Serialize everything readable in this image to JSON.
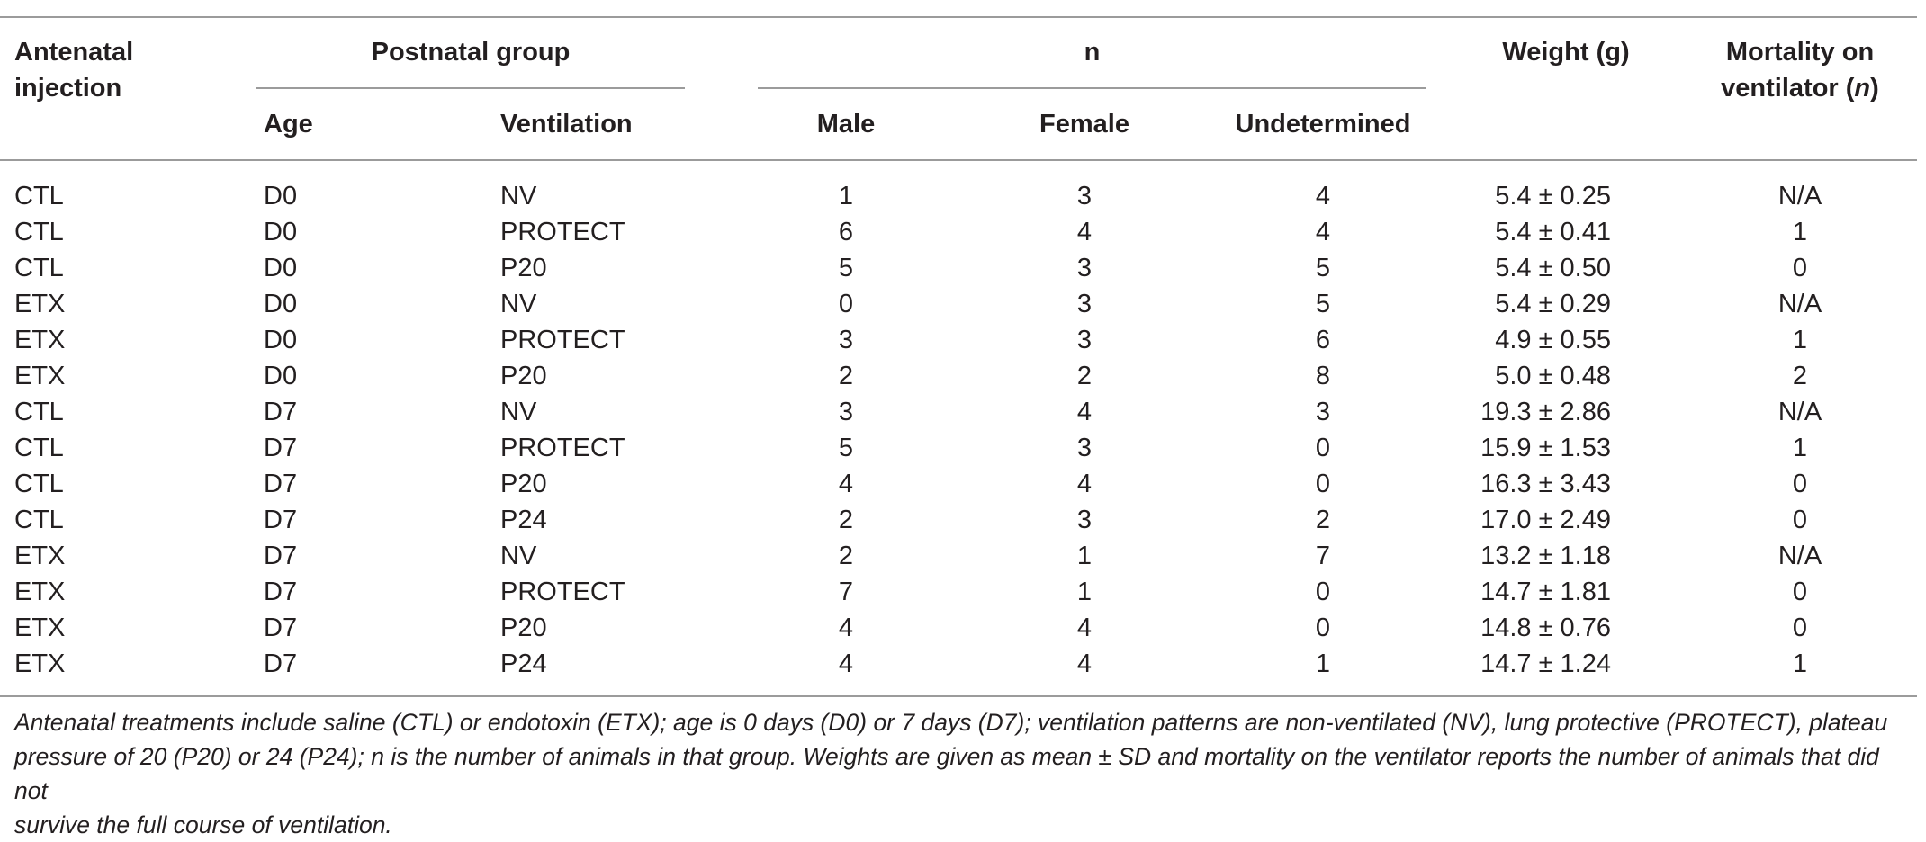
{
  "headers": {
    "antenatal_line1": "Antenatal",
    "antenatal_line2": "injection",
    "postnatal_group": "Postnatal group",
    "age": "Age",
    "ventilation": "Ventilation",
    "n": "n",
    "male": "Male",
    "female": "Female",
    "undetermined": "Undetermined",
    "weight": "Weight (g)",
    "mortality_line1": "Mortality on",
    "mortality_line2_prefix": "ventilator (",
    "mortality_line2_italic": "n",
    "mortality_line2_suffix": ")"
  },
  "rows": [
    {
      "injection": "CTL",
      "age": "D0",
      "ventilation": "NV",
      "male": "1",
      "female": "3",
      "undetermined": "4",
      "weight": "5.4 ± 0.25",
      "mortality": "N/A"
    },
    {
      "injection": "CTL",
      "age": "D0",
      "ventilation": "PROTECT",
      "male": "6",
      "female": "4",
      "undetermined": "4",
      "weight": "5.4 ± 0.41",
      "mortality": "1"
    },
    {
      "injection": "CTL",
      "age": "D0",
      "ventilation": "P20",
      "male": "5",
      "female": "3",
      "undetermined": "5",
      "weight": "5.4 ± 0.50",
      "mortality": "0"
    },
    {
      "injection": "ETX",
      "age": "D0",
      "ventilation": "NV",
      "male": "0",
      "female": "3",
      "undetermined": "5",
      "weight": "5.4 ± 0.29",
      "mortality": "N/A"
    },
    {
      "injection": "ETX",
      "age": "D0",
      "ventilation": "PROTECT",
      "male": "3",
      "female": "3",
      "undetermined": "6",
      "weight": "4.9 ± 0.55",
      "mortality": "1"
    },
    {
      "injection": "ETX",
      "age": "D0",
      "ventilation": "P20",
      "male": "2",
      "female": "2",
      "undetermined": "8",
      "weight": "5.0 ± 0.48",
      "mortality": "2"
    },
    {
      "injection": "CTL",
      "age": "D7",
      "ventilation": "NV",
      "male": "3",
      "female": "4",
      "undetermined": "3",
      "weight": "19.3 ± 2.86",
      "mortality": "N/A"
    },
    {
      "injection": "CTL",
      "age": "D7",
      "ventilation": "PROTECT",
      "male": "5",
      "female": "3",
      "undetermined": "0",
      "weight": "15.9 ± 1.53",
      "mortality": "1"
    },
    {
      "injection": "CTL",
      "age": "D7",
      "ventilation": "P20",
      "male": "4",
      "female": "4",
      "undetermined": "0",
      "weight": "16.3 ± 3.43",
      "mortality": "0"
    },
    {
      "injection": "CTL",
      "age": "D7",
      "ventilation": "P24",
      "male": "2",
      "female": "3",
      "undetermined": "2",
      "weight": "17.0 ± 2.49",
      "mortality": "0"
    },
    {
      "injection": "ETX",
      "age": "D7",
      "ventilation": "NV",
      "male": "2",
      "female": "1",
      "undetermined": "7",
      "weight": "13.2 ± 1.18",
      "mortality": "N/A"
    },
    {
      "injection": "ETX",
      "age": "D7",
      "ventilation": "PROTECT",
      "male": "7",
      "female": "1",
      "undetermined": "0",
      "weight": "14.7 ± 1.81",
      "mortality": "0"
    },
    {
      "injection": "ETX",
      "age": "D7",
      "ventilation": "P20",
      "male": "4",
      "female": "4",
      "undetermined": "0",
      "weight": "14.8 ± 0.76",
      "mortality": "0"
    },
    {
      "injection": "ETX",
      "age": "D7",
      "ventilation": "P24",
      "male": "4",
      "female": "4",
      "undetermined": "1",
      "weight": "14.7 ± 1.24",
      "mortality": "1"
    }
  ],
  "footnote": {
    "line1": "Antenatal treatments include saline (CTL) or endotoxin (ETX); age is 0 days (D0) or 7 days (D7); ventilation patterns are non-ventilated (NV), lung protective (PROTECT), plateau",
    "line2": "pressure of 20 (P20) or 24 (P24); n is the number of animals in that group. Weights are given as mean ± SD and mortality on the ventilator reports the number of animals that did not",
    "line3": "survive the full course of ventilation."
  }
}
